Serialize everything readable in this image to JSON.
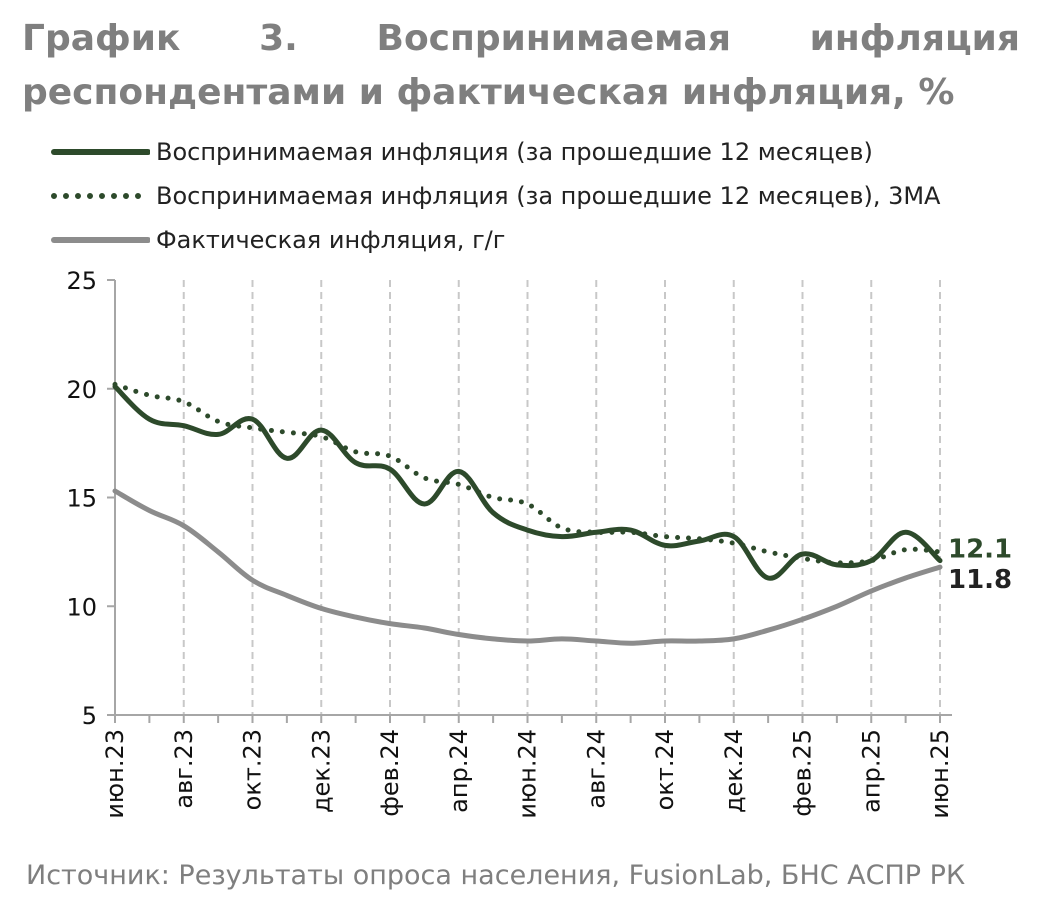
{
  "title": {
    "words": [
      "График",
      "3.",
      "Воспринимаемая",
      "инфляция"
    ],
    "line2": "респондентами и фактическая инфляция, %"
  },
  "legend": [
    {
      "label": "Воспринимаемая инфляция (за прошедшие 12 месяцев)",
      "style": "solid",
      "color": "#2d4a2b"
    },
    {
      "label": "Воспринимаемая инфляция (за прошедшие 12 месяцев), 3МА",
      "style": "dotted",
      "color": "#2d4a2b"
    },
    {
      "label": "Фактическая инфляция, г/г",
      "style": "solid",
      "color": "#8c8c8c"
    }
  ],
  "source": "Источник: Результаты опроса населения, FusionLab, БНС АСПР РК",
  "colors": {
    "perceived": "#2d4a2b",
    "actual": "#8c8c8c",
    "grid": "#c8c8c8",
    "axis": "#a6a6a6"
  },
  "chart_data": {
    "type": "line",
    "ylim": [
      5,
      25
    ],
    "yticks": [
      5,
      10,
      15,
      20,
      25
    ],
    "grid": true,
    "legend_position": "top",
    "x_tick_labels": [
      "июн.23",
      "авг.23",
      "окт.23",
      "дек.23",
      "фев.24",
      "апр.24",
      "июн.24",
      "авг.24",
      "окт.24",
      "дек.24",
      "фев.25",
      "апр.25",
      "июн.25"
    ],
    "x_tick_index": [
      0,
      2,
      4,
      6,
      8,
      10,
      12,
      14,
      16,
      18,
      20,
      22,
      24
    ],
    "x": [
      "июн.23",
      "июл.23",
      "авг.23",
      "сен.23",
      "окт.23",
      "ноя.23",
      "дек.23",
      "янв.24",
      "фев.24",
      "мар.24",
      "апр.24",
      "май.24",
      "июн.24",
      "июл.24",
      "авг.24",
      "сен.24",
      "окт.24",
      "ноя.24",
      "дек.24",
      "янв.25",
      "фев.25",
      "мар.25",
      "апр.25",
      "май.25",
      "июн.25"
    ],
    "series": [
      {
        "name": "Воспринимаемая инфляция (за прошедшие 12 месяцев)",
        "style": "solid",
        "values": [
          20.1,
          18.6,
          18.3,
          17.9,
          18.6,
          16.8,
          18.1,
          16.6,
          16.3,
          14.7,
          16.2,
          14.3,
          13.5,
          13.2,
          13.4,
          13.5,
          12.8,
          13.0,
          13.2,
          11.3,
          12.4,
          11.9,
          12.1,
          13.4,
          12.1
        ]
      },
      {
        "name": "Воспринимаемая инфляция (за прошедшие 12 месяцев), 3МА",
        "style": "dotted",
        "values": [
          20.2,
          19.7,
          19.4,
          18.5,
          18.2,
          18.0,
          17.8,
          17.1,
          16.9,
          15.9,
          15.6,
          15.0,
          14.7,
          13.6,
          13.4,
          13.4,
          13.2,
          13.1,
          12.9,
          12.5,
          12.2,
          12.0,
          12.1,
          12.6,
          12.5
        ]
      },
      {
        "name": "Фактическая инфляция, г/г",
        "style": "solid",
        "values": [
          15.3,
          14.4,
          13.7,
          12.5,
          11.2,
          10.5,
          9.9,
          9.5,
          9.2,
          9.0,
          8.7,
          8.5,
          8.4,
          8.5,
          8.4,
          8.3,
          8.4,
          8.4,
          8.5,
          8.9,
          9.4,
          10.0,
          10.7,
          11.3,
          11.8
        ]
      }
    ],
    "end_labels": [
      {
        "text": "12.1",
        "series": 0
      },
      {
        "text": "11.8",
        "series": 2
      }
    ]
  }
}
